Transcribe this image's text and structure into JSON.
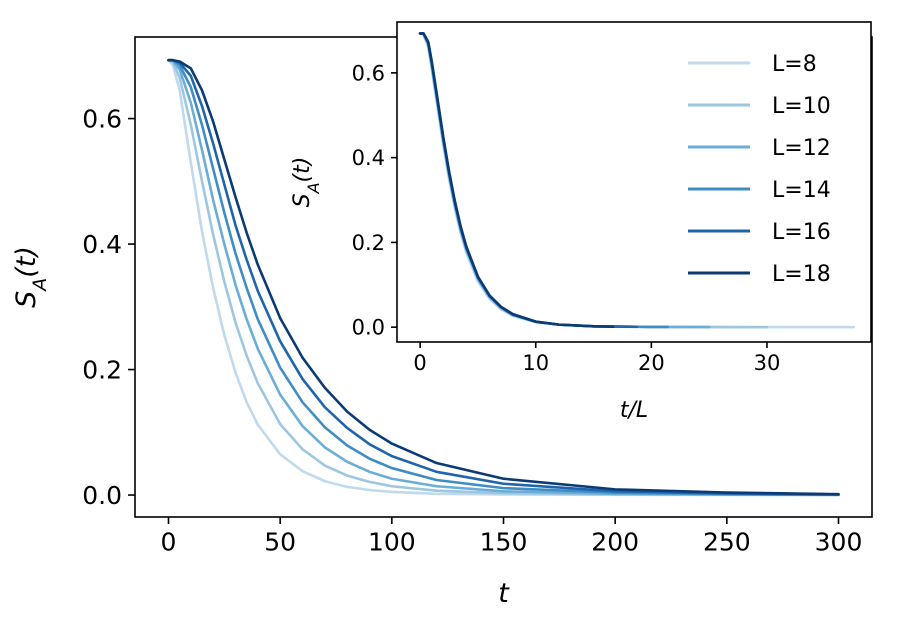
{
  "chart_data": [
    {
      "type": "line",
      "panel": "main",
      "xlabel": "t",
      "ylabel": "S_A(t)",
      "xlim": [
        -15,
        315
      ],
      "ylim": [
        -0.035,
        0.73
      ],
      "xticks": [
        0,
        50,
        100,
        150,
        200,
        250,
        300
      ],
      "xtick_labels": [
        "0",
        "50",
        "100",
        "150",
        "200",
        "250",
        "300"
      ],
      "yticks": [
        0.0,
        0.2,
        0.4,
        0.6
      ],
      "ytick_labels": [
        "0.0",
        "0.2",
        "0.4",
        "0.6"
      ],
      "grid": false,
      "series": [
        {
          "name": "L=8",
          "color": "#c0d9ed",
          "x": [
            0,
            2,
            5,
            10,
            15,
            20,
            25,
            30,
            35,
            40,
            50,
            60,
            70,
            80,
            90,
            100,
            120,
            150,
            200,
            250,
            300
          ],
          "y": [
            0.693,
            0.685,
            0.645,
            0.53,
            0.42,
            0.33,
            0.255,
            0.195,
            0.148,
            0.112,
            0.065,
            0.038,
            0.022,
            0.013,
            0.008,
            0.005,
            0.002,
            0.001,
            0.0004,
            0.0002,
            0.0001
          ]
        },
        {
          "name": "L=10",
          "color": "#9dc7e1",
          "x": [
            0,
            2,
            5,
            10,
            15,
            20,
            25,
            30,
            35,
            40,
            50,
            60,
            70,
            80,
            90,
            100,
            120,
            150,
            200,
            250,
            300
          ],
          "y": [
            0.693,
            0.69,
            0.665,
            0.59,
            0.5,
            0.415,
            0.34,
            0.275,
            0.222,
            0.178,
            0.113,
            0.073,
            0.047,
            0.031,
            0.021,
            0.014,
            0.007,
            0.003,
            0.001,
            0.0005,
            0.0002
          ]
        },
        {
          "name": "L=12",
          "color": "#6aadd6",
          "x": [
            0,
            2,
            5,
            10,
            15,
            20,
            25,
            30,
            35,
            40,
            50,
            60,
            70,
            80,
            90,
            100,
            120,
            150,
            200,
            250,
            300
          ],
          "y": [
            0.693,
            0.692,
            0.678,
            0.625,
            0.55,
            0.47,
            0.4,
            0.335,
            0.28,
            0.233,
            0.16,
            0.11,
            0.076,
            0.053,
            0.037,
            0.026,
            0.014,
            0.006,
            0.002,
            0.001,
            0.0004
          ]
        },
        {
          "name": "L=14",
          "color": "#3f8dc4",
          "x": [
            0,
            2,
            5,
            10,
            15,
            20,
            25,
            30,
            35,
            40,
            50,
            60,
            70,
            80,
            90,
            100,
            120,
            150,
            200,
            250,
            300
          ],
          "y": [
            0.693,
            0.693,
            0.685,
            0.65,
            0.59,
            0.52,
            0.45,
            0.385,
            0.33,
            0.28,
            0.203,
            0.148,
            0.108,
            0.079,
            0.058,
            0.043,
            0.024,
            0.011,
            0.004,
            0.0015,
            0.0006
          ]
        },
        {
          "name": "L=16",
          "color": "#1f65ab",
          "x": [
            0,
            2,
            5,
            10,
            15,
            20,
            25,
            30,
            35,
            40,
            50,
            60,
            70,
            80,
            90,
            100,
            120,
            150,
            200,
            250,
            300
          ],
          "y": [
            0.693,
            0.693,
            0.689,
            0.668,
            0.62,
            0.56,
            0.495,
            0.43,
            0.375,
            0.325,
            0.245,
            0.185,
            0.14,
            0.107,
            0.081,
            0.062,
            0.037,
            0.018,
            0.006,
            0.0025,
            0.0009
          ]
        },
        {
          "name": "L=18",
          "color": "#0b3a75",
          "x": [
            0,
            2,
            5,
            10,
            15,
            20,
            25,
            30,
            35,
            40,
            50,
            60,
            70,
            80,
            90,
            100,
            120,
            150,
            200,
            250,
            300
          ],
          "y": [
            0.693,
            0.693,
            0.691,
            0.68,
            0.645,
            0.595,
            0.535,
            0.475,
            0.418,
            0.367,
            0.282,
            0.219,
            0.171,
            0.133,
            0.104,
            0.082,
            0.051,
            0.026,
            0.009,
            0.004,
            0.0013
          ]
        }
      ]
    },
    {
      "type": "line",
      "panel": "inset",
      "xlabel": "t/L",
      "ylabel": "S_A(t)",
      "xlim": [
        -2,
        39
      ],
      "ylim": [
        -0.035,
        0.72
      ],
      "xticks": [
        0,
        10,
        20,
        30
      ],
      "xtick_labels": [
        "0",
        "10",
        "20",
        "30"
      ],
      "yticks": [
        0.0,
        0.2,
        0.4,
        0.6
      ],
      "ytick_labels": [
        "0.0",
        "0.2",
        "0.4",
        "0.6"
      ],
      "grid": false,
      "legend": "top-right",
      "series": [
        {
          "name": "L=8",
          "color": "#c0d9ed",
          "x": [
            0,
            0.3,
            0.7,
            1,
            1.5,
            2,
            2.5,
            3,
            3.5,
            4,
            5,
            6,
            7,
            8,
            10,
            12,
            15,
            20,
            25,
            30,
            37.5
          ],
          "y": [
            0.693,
            0.69,
            0.66,
            0.61,
            0.52,
            0.43,
            0.35,
            0.28,
            0.222,
            0.175,
            0.108,
            0.067,
            0.042,
            0.027,
            0.012,
            0.006,
            0.002,
            0.0006,
            0.0002,
            0.0001,
            0.0001
          ]
        },
        {
          "name": "L=10",
          "color": "#9dc7e1",
          "x": [
            0,
            0.3,
            0.7,
            1,
            1.5,
            2,
            2.5,
            3,
            3.5,
            4,
            5,
            6,
            7,
            8,
            10,
            12,
            15,
            20,
            25,
            30
          ],
          "y": [
            0.693,
            0.691,
            0.665,
            0.615,
            0.525,
            0.435,
            0.355,
            0.285,
            0.227,
            0.18,
            0.112,
            0.07,
            0.044,
            0.028,
            0.012,
            0.006,
            0.002,
            0.0006,
            0.0002,
            0.0001
          ]
        },
        {
          "name": "L=12",
          "color": "#6aadd6",
          "x": [
            0,
            0.3,
            0.7,
            1,
            1.5,
            2,
            2.5,
            3,
            3.5,
            4,
            5,
            6,
            7,
            8,
            10,
            12,
            15,
            20,
            25
          ],
          "y": [
            0.693,
            0.692,
            0.668,
            0.62,
            0.53,
            0.44,
            0.36,
            0.29,
            0.231,
            0.184,
            0.115,
            0.072,
            0.046,
            0.029,
            0.013,
            0.006,
            0.002,
            0.0006,
            0.0002
          ]
        },
        {
          "name": "L=14",
          "color": "#3f8dc4",
          "x": [
            0,
            0.3,
            0.7,
            1,
            1.5,
            2,
            2.5,
            3,
            3.5,
            4,
            5,
            6,
            7,
            8,
            10,
            12,
            15,
            20,
            21.4
          ],
          "y": [
            0.693,
            0.692,
            0.67,
            0.623,
            0.534,
            0.444,
            0.363,
            0.293,
            0.234,
            0.186,
            0.117,
            0.073,
            0.047,
            0.03,
            0.013,
            0.006,
            0.002,
            0.0006,
            0.0005
          ]
        },
        {
          "name": "L=16",
          "color": "#1f65ab",
          "x": [
            0,
            0.3,
            0.7,
            1,
            1.5,
            2,
            2.5,
            3,
            3.5,
            4,
            5,
            6,
            7,
            8,
            10,
            12,
            15,
            18.75
          ],
          "y": [
            0.693,
            0.693,
            0.672,
            0.626,
            0.537,
            0.447,
            0.366,
            0.296,
            0.236,
            0.188,
            0.118,
            0.074,
            0.047,
            0.03,
            0.013,
            0.006,
            0.002,
            0.0008
          ]
        },
        {
          "name": "L=18",
          "color": "#0b3a75",
          "x": [
            0,
            0.3,
            0.7,
            1,
            1.5,
            2,
            2.5,
            3,
            3.5,
            4,
            5,
            6,
            7,
            8,
            10,
            12,
            15,
            16.7
          ],
          "y": [
            0.693,
            0.693,
            0.673,
            0.628,
            0.539,
            0.449,
            0.368,
            0.298,
            0.238,
            0.19,
            0.119,
            0.075,
            0.048,
            0.031,
            0.013,
            0.006,
            0.002,
            0.0012
          ]
        }
      ]
    }
  ]
}
